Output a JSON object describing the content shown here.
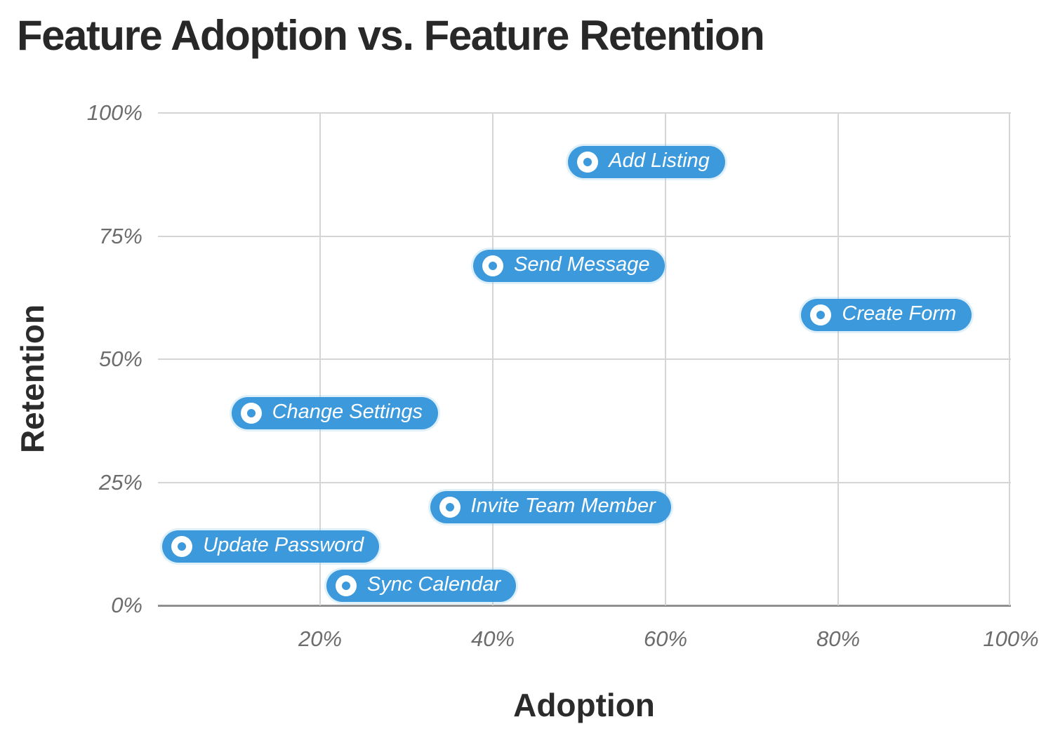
{
  "title": "Feature Adoption vs. Feature Retention",
  "chart_data": {
    "type": "scatter",
    "title": "Feature Adoption vs. Feature Retention",
    "xlabel": "Adoption",
    "ylabel": "Retention",
    "xlim": [
      0,
      100
    ],
    "ylim": [
      0,
      100
    ],
    "grid": true,
    "x_ticks": [
      {
        "value": 20,
        "label": "20%"
      },
      {
        "value": 40,
        "label": "40%"
      },
      {
        "value": 60,
        "label": "60%"
      },
      {
        "value": 80,
        "label": "80%"
      },
      {
        "value": 100,
        "label": "100%"
      }
    ],
    "y_ticks": [
      {
        "value": 0,
        "label": "0%"
      },
      {
        "value": 25,
        "label": "25%"
      },
      {
        "value": 50,
        "label": "50%"
      },
      {
        "value": 75,
        "label": "75%"
      },
      {
        "value": 100,
        "label": "100%"
      }
    ],
    "points": [
      {
        "label": "Add Listing",
        "adoption_pct": 51,
        "retention_pct": 90
      },
      {
        "label": "Send Message",
        "adoption_pct": 40,
        "retention_pct": 69
      },
      {
        "label": "Create Form",
        "adoption_pct": 78,
        "retention_pct": 59
      },
      {
        "label": "Change Settings",
        "adoption_pct": 12,
        "retention_pct": 39
      },
      {
        "label": "Invite Team Member",
        "adoption_pct": 35,
        "retention_pct": 20
      },
      {
        "label": "Update Password",
        "adoption_pct": 4,
        "retention_pct": 12
      },
      {
        "label": "Sync Calendar",
        "adoption_pct": 23,
        "retention_pct": 4
      }
    ],
    "colors": {
      "point_pill": "#3b99dc",
      "pill_text": "#ffffff",
      "gridline": "#d5d5d5",
      "axis_line": "#8f8f8f",
      "tick_text": "#6c6c6c",
      "title_text": "#282828"
    },
    "legend": "none"
  }
}
